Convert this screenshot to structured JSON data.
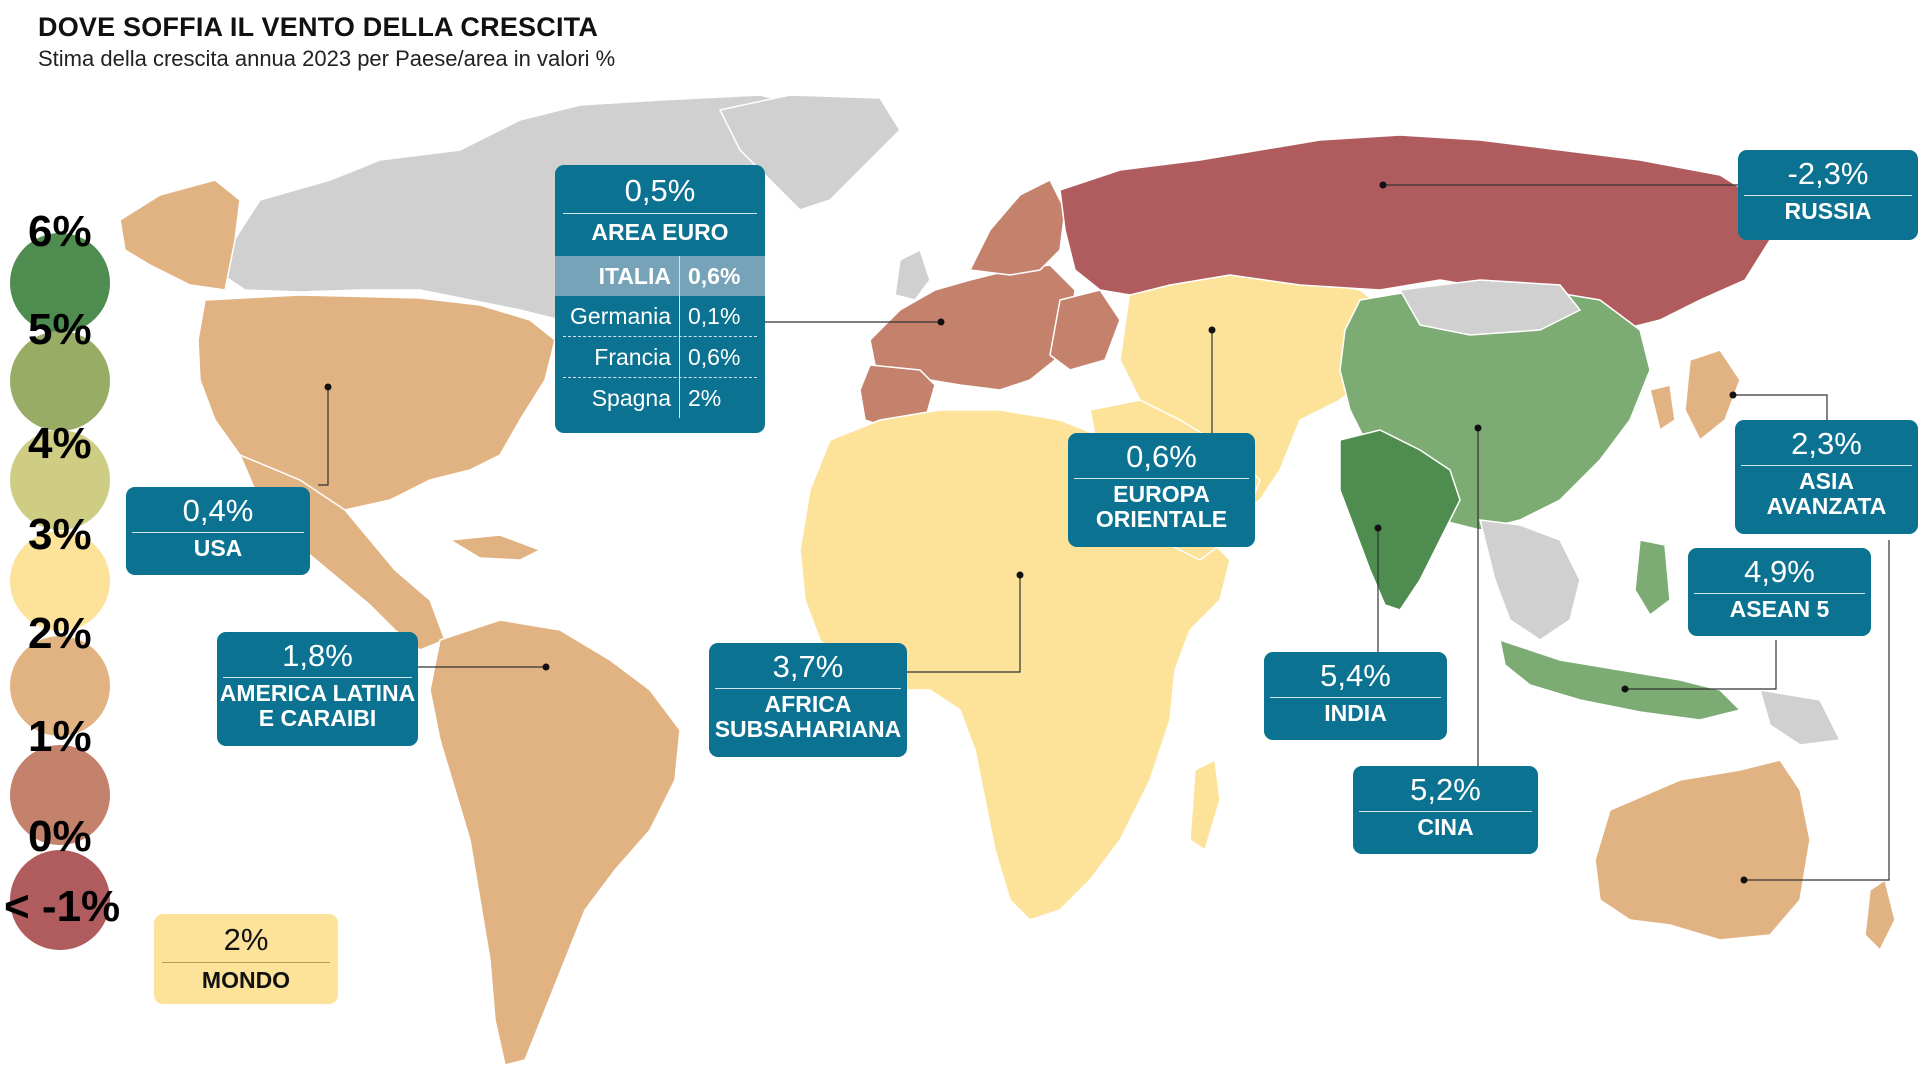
{
  "header": {
    "title": "DOVE SOFFIA IL VENTO DELLA CRESCITA",
    "subtitle": "Stima della crescita annua 2023 per Paese/area in valori %"
  },
  "colors": {
    "neg": "#b05c5e",
    "c0": "#c4816c",
    "c1": "#e2b382",
    "c2": "#fde29a",
    "c3": "#cfcc84",
    "c4": "#98ac66",
    "c5": "#4f8c4f",
    "c6": "#7cab73",
    "nodata": "#d0d0d0",
    "box": "#0b7391"
  },
  "legend": [
    {
      "label": "6%",
      "color": "#4f8c4f"
    },
    {
      "label": "5%",
      "color": "#98ac66"
    },
    {
      "label": "4%",
      "color": "#cfcc84"
    },
    {
      "label": "3%",
      "color": "#fde29a"
    },
    {
      "label": "2%",
      "color": "#e2b382"
    },
    {
      "label": "1%",
      "color": "#c4816c"
    },
    {
      "label": "0%",
      "color": "#b05c5e"
    },
    {
      "label": "< -1%",
      "color": ""
    }
  ],
  "regions": {
    "usa": {
      "value": "0,4%",
      "name": "USA"
    },
    "latam": {
      "value": "1,8%",
      "name_1": "AMERICA LATINA",
      "name_2": "E CARAIBI"
    },
    "africa": {
      "value": "3,7%",
      "name_1": "AFRICA",
      "name_2": "SUBSAHARIANA"
    },
    "east_europe": {
      "value": "0,6%",
      "name_1": "EUROPA",
      "name_2": "ORIENTALE"
    },
    "russia": {
      "value": "-2,3%",
      "name": "RUSSIA"
    },
    "adv_asia": {
      "value": "2,3%",
      "name_1": "ASIA",
      "name_2": "AVANZATA"
    },
    "asean": {
      "value": "4,9%",
      "name": "ASEAN 5"
    },
    "india": {
      "value": "5,4%",
      "name": "INDIA"
    },
    "china": {
      "value": "5,2%",
      "name": "CINA"
    }
  },
  "euro_area": {
    "value": "0,5%",
    "name": "AREA EURO",
    "rows": [
      {
        "country": "ITALIA",
        "value": "0,6%"
      },
      {
        "country": "Germania",
        "value": "0,1%"
      },
      {
        "country": "Francia",
        "value": "0,6%"
      },
      {
        "country": "Spagna",
        "value": "2%"
      }
    ]
  },
  "world": {
    "value": "2%",
    "name": "MONDO"
  }
}
